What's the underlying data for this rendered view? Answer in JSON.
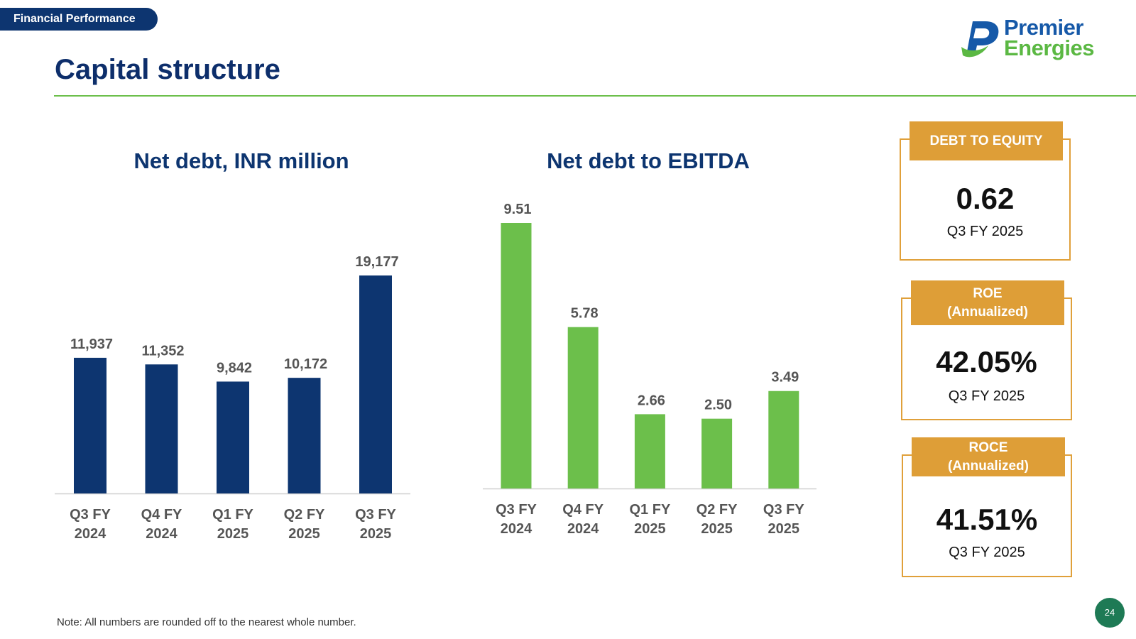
{
  "header": {
    "section_tag": "Financial Performance",
    "title": "Capital structure",
    "logo": {
      "line1": "Premier",
      "line2": "Energies"
    }
  },
  "colors": {
    "navy": "#0d3570",
    "green": "#6cbf4b",
    "gold": "#de9e37",
    "rule": "#6cbf4b"
  },
  "chart_data": [
    {
      "type": "bar",
      "title": "Net debt, INR million",
      "categories": [
        [
          "Q3 FY",
          "2024"
        ],
        [
          "Q4 FY",
          "2024"
        ],
        [
          "Q1 FY",
          "2025"
        ],
        [
          "Q2 FY",
          "2025"
        ],
        [
          "Q3 FY",
          "2025"
        ]
      ],
      "values": [
        11937,
        11352,
        9842,
        10172,
        19177
      ],
      "value_labels": [
        "11,937",
        "11,352",
        "9,842",
        "10,172",
        "19,177"
      ],
      "xlabel": "",
      "ylabel": "",
      "ylim": [
        0,
        20000
      ],
      "grid": false
    },
    {
      "type": "bar",
      "title": "Net debt to EBITDA",
      "categories": [
        [
          "Q3 FY",
          "2024"
        ],
        [
          "Q4 FY",
          "2024"
        ],
        [
          "Q1 FY",
          "2025"
        ],
        [
          "Q2 FY",
          "2025"
        ],
        [
          "Q3 FY",
          "2025"
        ]
      ],
      "values": [
        9.51,
        5.78,
        2.66,
        2.5,
        3.49
      ],
      "value_labels": [
        "9.51",
        "5.78",
        "2.66",
        "2.50",
        "3.49"
      ],
      "xlabel": "",
      "ylabel": "",
      "ylim": [
        0,
        10
      ],
      "grid": false
    }
  ],
  "kpis": [
    {
      "label_lines": [
        "DEBT TO EQUITY"
      ],
      "value": "0.62",
      "period": "Q3 FY 2025"
    },
    {
      "label_lines": [
        "ROE",
        "(Annualized)"
      ],
      "value": "42.05%",
      "period": "Q3 FY 2025"
    },
    {
      "label_lines": [
        "ROCE",
        "(Annualized)"
      ],
      "value": "41.51%",
      "period": "Q3 FY 2025"
    }
  ],
  "footer": {
    "note": "Note: All numbers are rounded off to the nearest whole number.",
    "page_number": "24"
  }
}
